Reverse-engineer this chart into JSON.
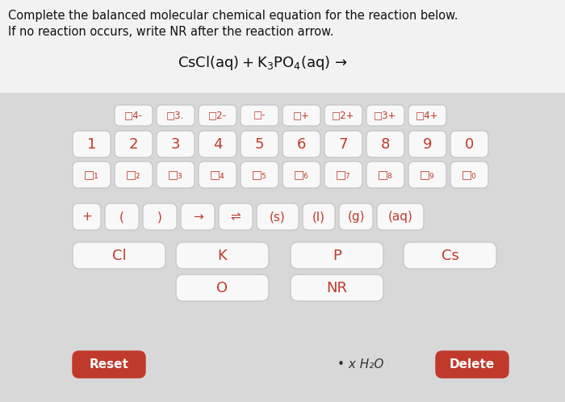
{
  "title_line1": "Complete the balanced molecular chemical equation for the reaction below.",
  "title_line2": "If no reaction occurs, write NR after the reaction arrow.",
  "equation_parts": [
    {
      "text": "CsCl(aq) + K",
      "style": "normal"
    },
    {
      "text": "3",
      "style": "sub"
    },
    {
      "text": "PO",
      "style": "normal"
    },
    {
      "text": "4",
      "style": "sub"
    },
    {
      "text": "(aq) →",
      "style": "normal"
    }
  ],
  "bg_color": "#d8d8d8",
  "header_bg": "#f0f0f0",
  "key_bg": "#f8f8f8",
  "key_border": "#c8c8c8",
  "key_text_color": "#c0392b",
  "title_color": "#111111",
  "eq_color": "#111111",
  "reset_bg": "#c0392b",
  "reset_text": "#ffffff",
  "delete_bg": "#c0392b",
  "delete_text": "#ffffff",
  "row0_labels": [
    "□4-",
    "□3.",
    "□2-",
    "□-",
    "□+",
    "□2+",
    "□3+",
    "□4+"
  ],
  "row1_labels": [
    "1",
    "2",
    "3",
    "4",
    "5",
    "6",
    "7",
    "8",
    "9",
    "0"
  ],
  "row2_labels": [
    "□₁",
    "□₂",
    "□₃",
    "□₄",
    "□₅",
    "□₆",
    "□₇",
    "□₈",
    "□₉",
    "□₀"
  ],
  "row3_labels": [
    "+",
    "(",
    ")",
    "→",
    "⇌",
    "(s)",
    "(l)",
    "(g)",
    "(aq)"
  ],
  "row4_labels": [
    "Cl",
    "K",
    "P",
    "Cs"
  ],
  "row5_labels": [
    "O",
    "NR"
  ],
  "bottom_left": "Reset",
  "bottom_mid": "• x H₂O",
  "bottom_right": "Delete",
  "figw": 7.0,
  "figh": 4.98,
  "dpi": 100
}
